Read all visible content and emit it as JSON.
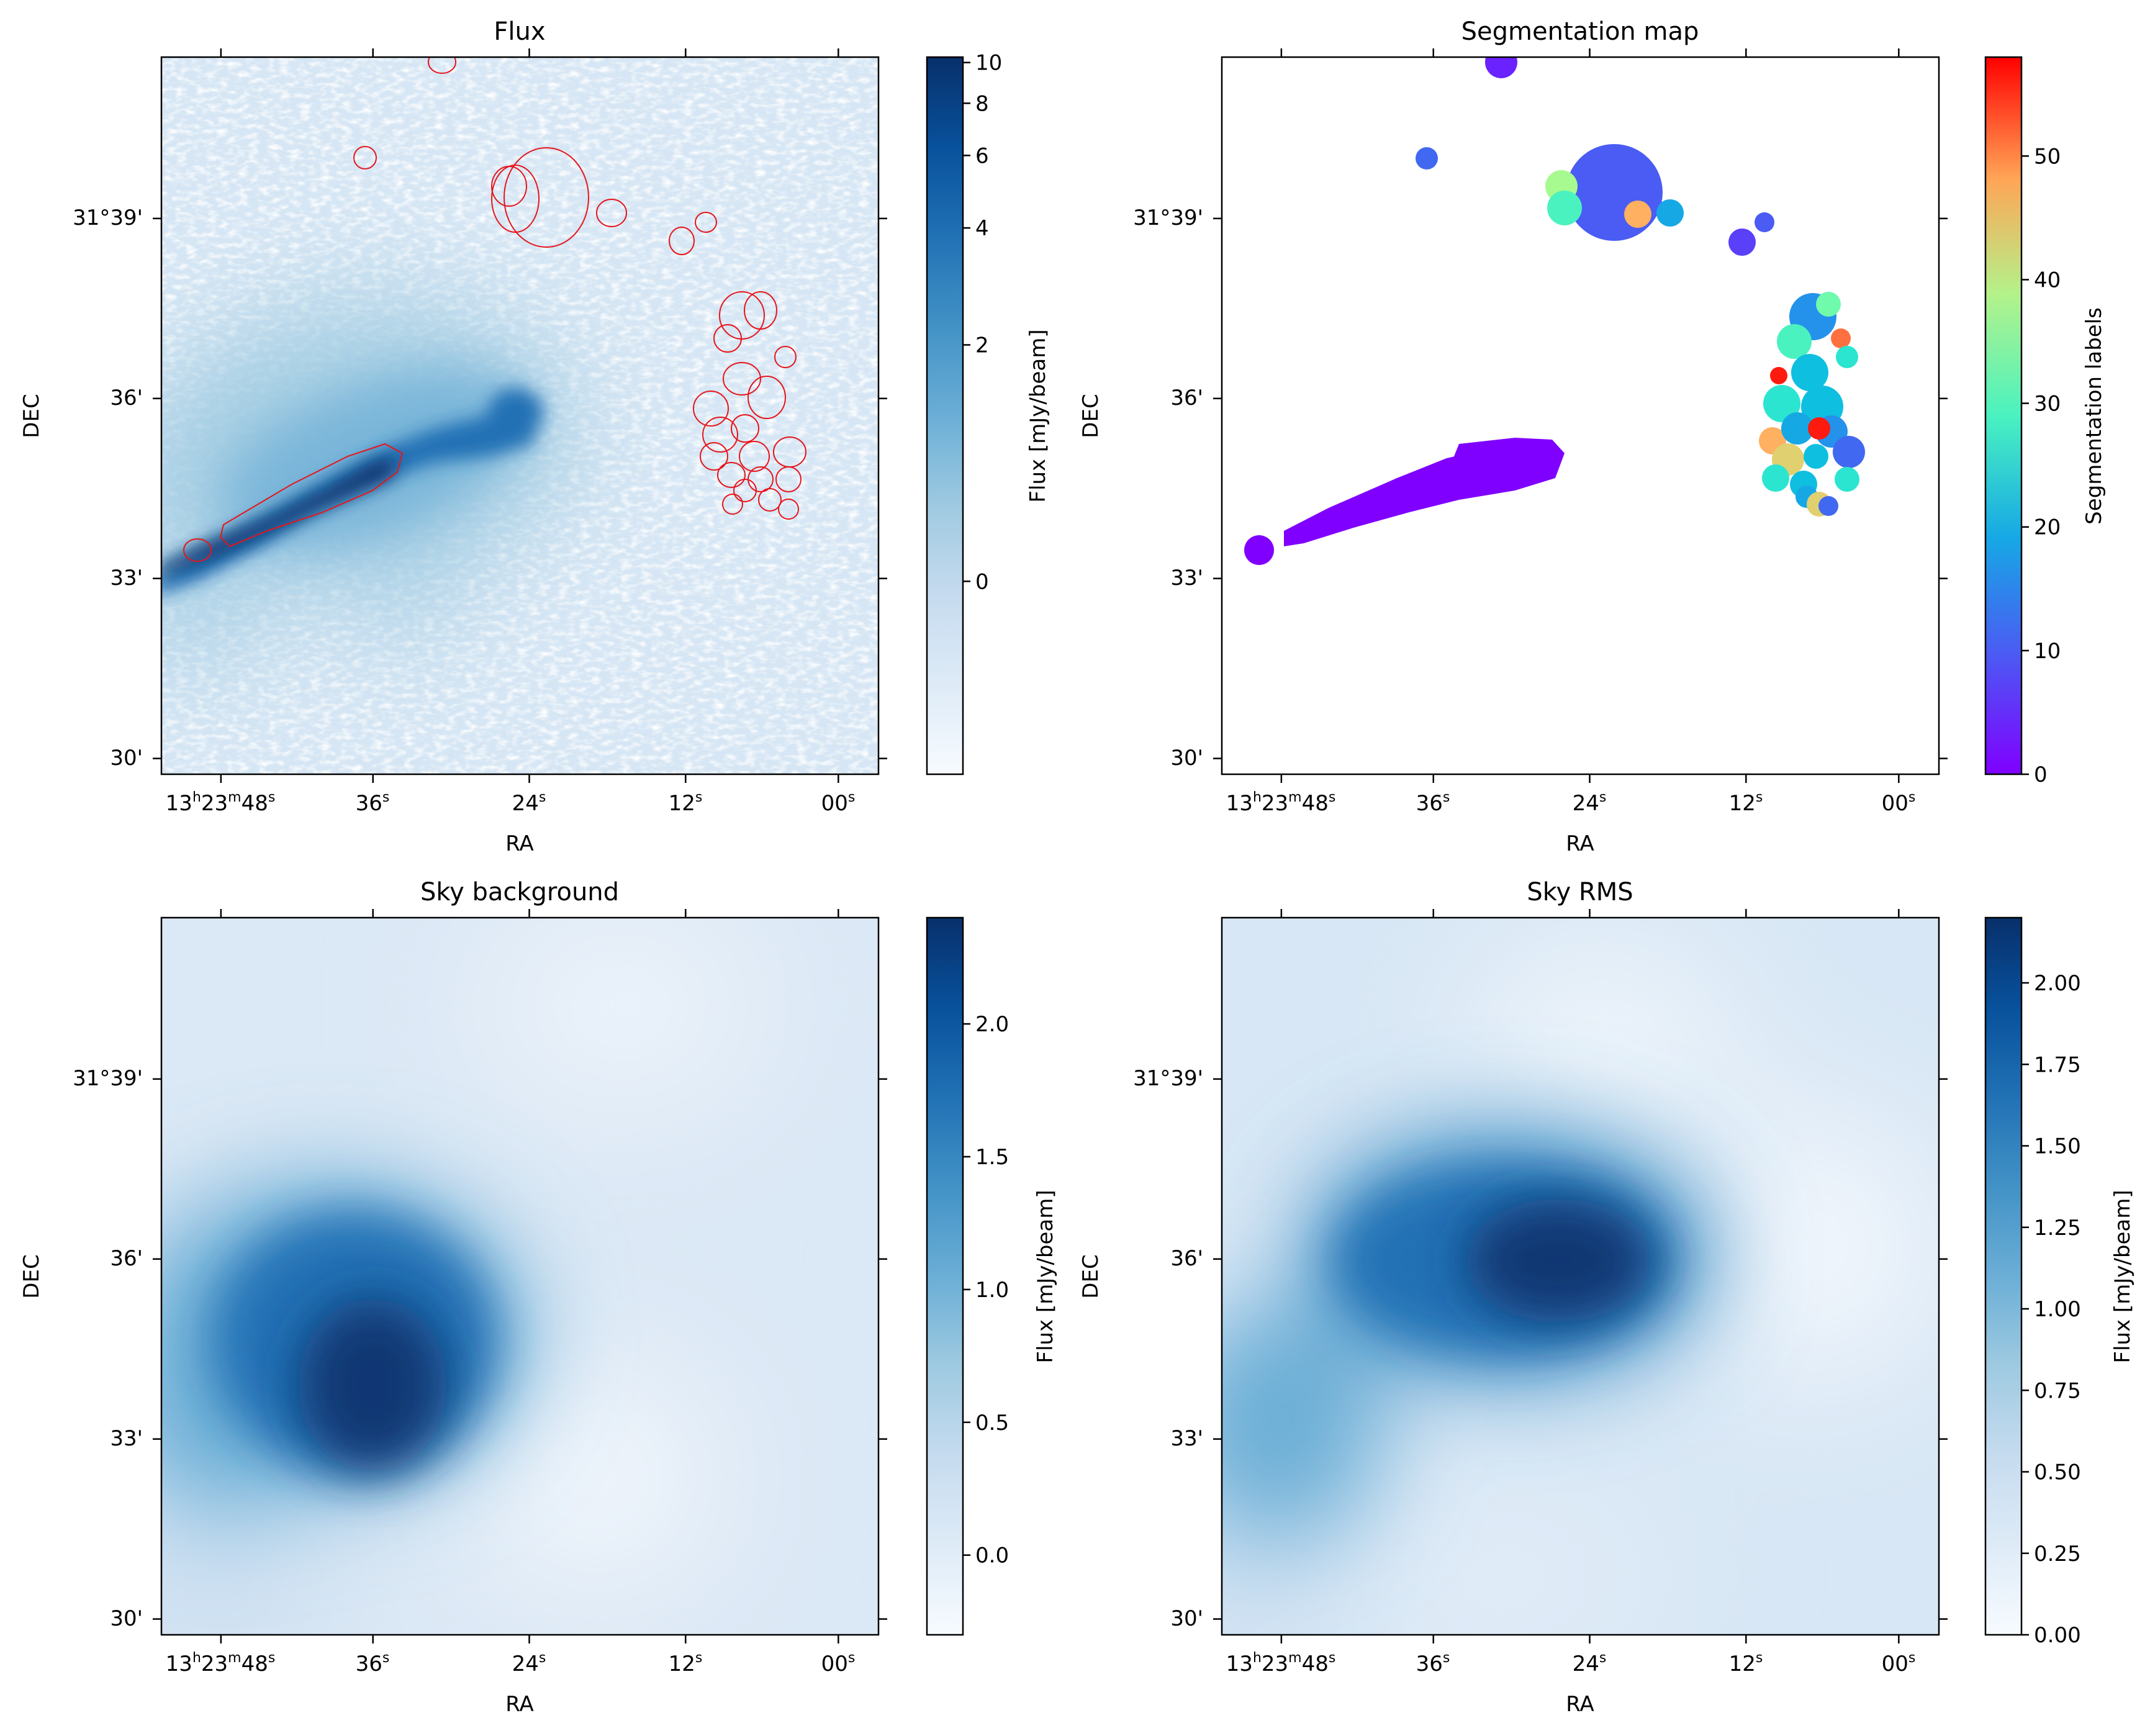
{
  "chart_data": [
    {
      "type": "heatmap",
      "title": "Flux",
      "xlabel": "RA",
      "ylabel": "DEC",
      "x_ticks": [
        {
          "h": "13",
          "m": "23",
          "s": "48"
        },
        {
          "s": "36"
        },
        {
          "s": "24"
        },
        {
          "s": "12"
        },
        {
          "s": "00"
        }
      ],
      "y_ticks": [
        "31°39'",
        "36'",
        "33'",
        "30'"
      ],
      "colorbar": {
        "label": "Flux [mJy/beam]",
        "colormap": "Blues",
        "scale": "asinh-like",
        "range": [
          -1.5,
          10.3
        ],
        "ticks": [
          "10",
          "8",
          "6",
          "4",
          "2",
          "0"
        ],
        "tick_values": [
          10,
          8,
          6,
          4,
          2,
          0
        ]
      },
      "overlay": "segmentation contours (red)",
      "contour_color": "#e8141a",
      "features": [
        {
          "name": "jet",
          "from": [
            0.0,
            0.72
          ],
          "to": [
            0.53,
            0.5
          ],
          "peak": 10
        },
        {
          "name": "diffuse halo",
          "center": [
            0.35,
            0.55
          ],
          "level": 2.5
        }
      ]
    },
    {
      "type": "heatmap",
      "title": "Segmentation map",
      "xlabel": "RA",
      "ylabel": "DEC",
      "x_ticks": [
        {
          "h": "13",
          "m": "23",
          "s": "48"
        },
        {
          "s": "36"
        },
        {
          "s": "24"
        },
        {
          "s": "12"
        },
        {
          "s": "00"
        }
      ],
      "y_ticks": [
        "31°39'",
        "36'",
        "33'",
        "30'"
      ],
      "colorbar": {
        "label": "Segmentation labels",
        "colormap": "rainbow",
        "range": [
          0,
          58
        ],
        "ticks": [
          "50",
          "40",
          "30",
          "20",
          "10",
          "0"
        ],
        "tick_values": [
          50,
          40,
          30,
          20,
          10,
          0
        ]
      },
      "segments": [
        {
          "label": 0,
          "shape": "jet",
          "color": "#8000ff"
        },
        {
          "label": 2,
          "shape": "blob",
          "color": "#6a22fe"
        },
        {
          "label": 4,
          "shape": "blob",
          "color": "#5a40f8"
        },
        {
          "label": 6,
          "shape": "blob",
          "color": "#4a5cf3"
        },
        {
          "label": 8,
          "shape": "blob",
          "color": "#4168f0"
        },
        {
          "label": 12,
          "shape": "blob",
          "color": "#2492ea"
        },
        {
          "label": 14,
          "shape": "blob",
          "color": "#16a8e5"
        },
        {
          "label": 16,
          "shape": "blob",
          "color": "#0fbfe0"
        },
        {
          "label": 20,
          "shape": "blob",
          "color": "#2be5d0"
        },
        {
          "label": 24,
          "shape": "blob",
          "color": "#4af2c0"
        },
        {
          "label": 28,
          "shape": "blob",
          "color": "#6ffaac"
        },
        {
          "label": 34,
          "shape": "blob",
          "color": "#a6fa90"
        },
        {
          "label": 40,
          "shape": "blob",
          "color": "#e0d070"
        },
        {
          "label": 45,
          "shape": "blob",
          "color": "#ffb060"
        },
        {
          "label": 50,
          "shape": "blob",
          "color": "#ff7040"
        },
        {
          "label": 57,
          "shape": "blob",
          "color": "#ff1a10"
        }
      ]
    },
    {
      "type": "heatmap",
      "title": "Sky background",
      "xlabel": "RA",
      "ylabel": "DEC",
      "x_ticks": [
        {
          "h": "13",
          "m": "23",
          "s": "48"
        },
        {
          "s": "36"
        },
        {
          "s": "24"
        },
        {
          "s": "12"
        },
        {
          "s": "00"
        }
      ],
      "y_ticks": [
        "31°39'",
        "36'",
        "33'",
        "30'"
      ],
      "colorbar": {
        "label": "Flux [mJy/beam]",
        "colormap": "Blues",
        "range": [
          -0.3,
          2.4
        ],
        "ticks": [
          "2.0",
          "1.5",
          "1.0",
          "0.5",
          "0.0"
        ],
        "tick_values": [
          2.0,
          1.5,
          1.0,
          0.5,
          0.0
        ]
      },
      "features": [
        {
          "name": "peak",
          "center": [
            0.3,
            0.63
          ],
          "level": 2.35
        },
        {
          "name": "trough",
          "center": [
            0.62,
            0.76
          ],
          "level": -0.2
        }
      ]
    },
    {
      "type": "heatmap",
      "title": "Sky RMS",
      "xlabel": "RA",
      "ylabel": "DEC",
      "x_ticks": [
        {
          "h": "13",
          "m": "23",
          "s": "48"
        },
        {
          "s": "36"
        },
        {
          "s": "24"
        },
        {
          "s": "12"
        },
        {
          "s": "00"
        }
      ],
      "y_ticks": [
        "31°39'",
        "36'",
        "33'",
        "30'"
      ],
      "colorbar": {
        "label": "Flux [mJy/beam]",
        "colormap": "Blues",
        "range": [
          0.0,
          2.2
        ],
        "ticks": [
          "2.00",
          "1.75",
          "1.50",
          "1.25",
          "1.00",
          "0.75",
          "0.50",
          "0.25",
          "0.00"
        ],
        "tick_values": [
          2.0,
          1.75,
          1.5,
          1.25,
          1.0,
          0.75,
          0.5,
          0.25,
          0.0
        ]
      },
      "features": [
        {
          "name": "peak",
          "center": [
            0.47,
            0.48
          ],
          "level": 2.15
        },
        {
          "name": "secondary",
          "center": [
            0.08,
            0.72
          ],
          "level": 1.3
        }
      ]
    }
  ]
}
